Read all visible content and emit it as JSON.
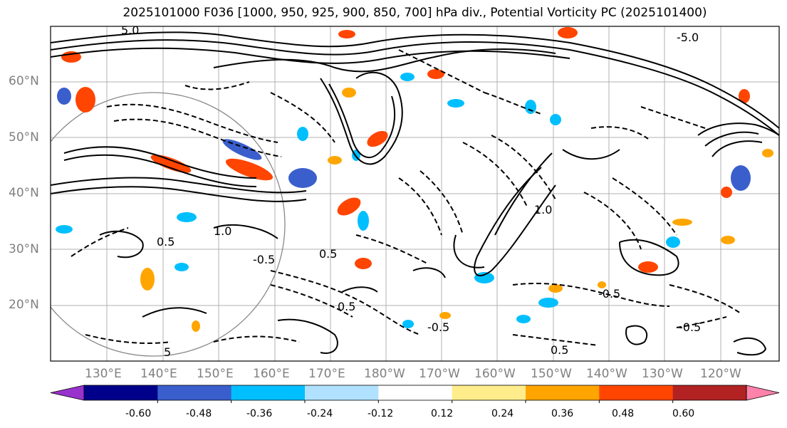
{
  "title": "2025101000 F036 [1000, 950, 925, 900, 850, 700] hPa div., Potential Vorticity PC (2025101400)",
  "lat_labels": [
    "60°N",
    "50°N",
    "40°N",
    "30°N",
    "20°N"
  ],
  "lon_labels": [
    "130°E",
    "140°E",
    "150°E",
    "160°E",
    "170°E",
    "180°W",
    "170°W",
    "160°W",
    "150°W",
    "140°W",
    "130°W",
    "120°W"
  ],
  "contour_labels": [
    "-5.0",
    "5.0",
    "1.0",
    "0.5",
    "-0.5",
    "-0.5",
    "0.5",
    "-0.5",
    "0.5",
    "1.0",
    "-0.5",
    "0.5",
    "5"
  ],
  "colorbar": {
    "colors": [
      "#9932cc",
      "#00008b",
      "#3a5fcd",
      "#00bfff",
      "#b0e2ff",
      "#ffffff",
      "#ffec8b",
      "#ffa500",
      "#ff4500",
      "#b22222",
      "#ff82ab"
    ],
    "tick_labels": [
      "-0.60",
      "-0.48",
      "-0.36",
      "-0.24",
      "-0.12",
      "0.12",
      "0.24",
      "0.36",
      "0.48",
      "0.60"
    ]
  },
  "chart_data": {
    "type": "contour-map",
    "title": "2025101000 F036 [1000, 950, 925, 900, 850, 700] hPa div., Potential Vorticity PC (2025101400)",
    "lat_range": [
      10,
      70
    ],
    "lon_range": [
      120,
      250
    ],
    "shading_levels": [
      -0.6,
      -0.48,
      -0.36,
      -0.24,
      -0.12,
      0.12,
      0.24,
      0.36,
      0.48,
      0.6
    ]
  }
}
